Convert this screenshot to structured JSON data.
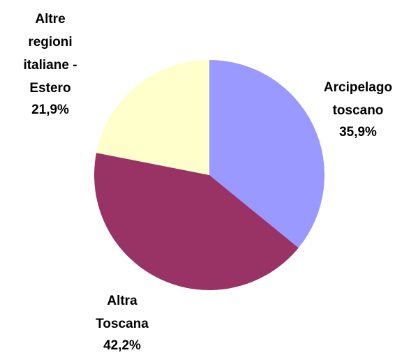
{
  "chart_data": {
    "type": "pie",
    "categories": [
      "Arcipelago\ntoscano",
      "Altra\nToscana",
      "Altre\nregioni\nitaliane -\nEstero"
    ],
    "values": [
      35.9,
      42.2,
      21.9
    ],
    "value_labels": [
      "35,9%",
      "42,2%",
      "21,9%"
    ],
    "colors": [
      "#9999ff",
      "#993366",
      "#ffffcc"
    ]
  }
}
